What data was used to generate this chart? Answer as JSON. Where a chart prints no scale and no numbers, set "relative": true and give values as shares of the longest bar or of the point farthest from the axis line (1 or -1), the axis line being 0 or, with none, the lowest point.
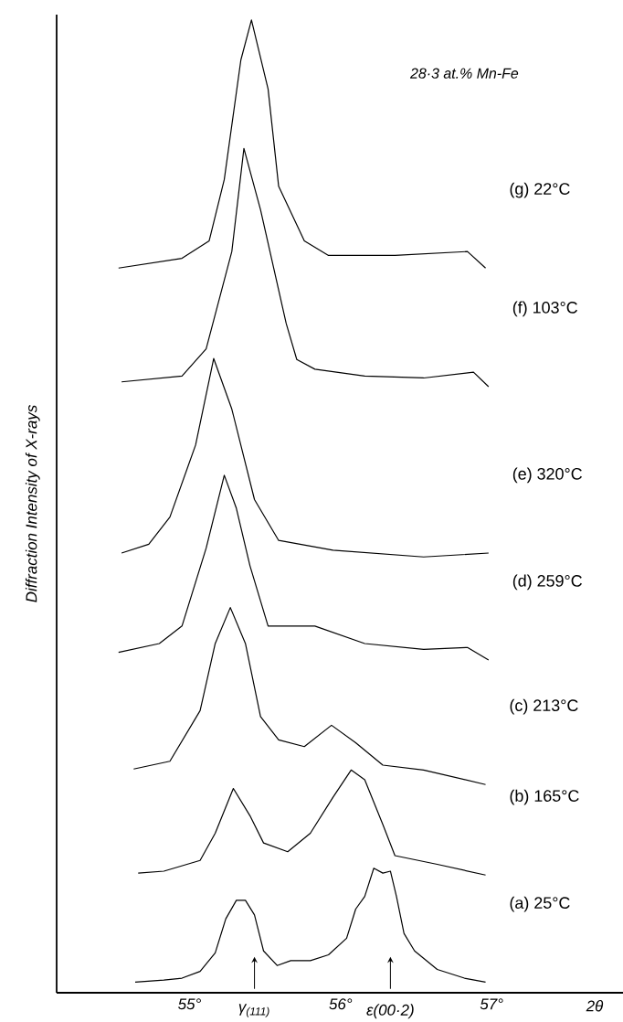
{
  "chart_data": {
    "type": "line",
    "title": "28·3 at.% Mn-Fe",
    "xlabel": "2θ",
    "ylabel": "Diffraction Intensity of X-rays",
    "relative": true,
    "xlim": [
      54.12,
      57.87
    ],
    "xticks": [
      {
        "value": 55,
        "label": "55°"
      },
      {
        "value": 56,
        "label": "56°"
      },
      {
        "value": 57,
        "label": "57°"
      }
    ],
    "series": [
      {
        "name": "(a) 25°C",
        "color": "#000000",
        "x": [
          54.64,
          54.83,
          54.95,
          55.07,
          55.17,
          55.24,
          55.31,
          55.37,
          55.43,
          55.49,
          55.58,
          55.67,
          55.8,
          55.92,
          56.04,
          56.1,
          56.16,
          56.22,
          56.28,
          56.33,
          56.37,
          56.42,
          56.49,
          56.64,
          56.82,
          56.96
        ],
        "values": [
          0.011,
          0.013,
          0.015,
          0.022,
          0.041,
          0.076,
          0.095,
          0.095,
          0.08,
          0.043,
          0.028,
          0.033,
          0.033,
          0.039,
          0.056,
          0.086,
          0.099,
          0.128,
          0.123,
          0.125,
          0.099,
          0.061,
          0.043,
          0.024,
          0.015,
          0.011
        ]
      },
      {
        "name": "(b) 165°C",
        "color": "#000000",
        "x": [
          54.66,
          54.83,
          55.07,
          55.17,
          55.29,
          55.4,
          55.49,
          55.65,
          55.8,
          55.95,
          56.07,
          56.16,
          56.28,
          56.36,
          56.64,
          56.96
        ],
        "values": [
          0.123,
          0.125,
          0.136,
          0.164,
          0.21,
          0.182,
          0.154,
          0.145,
          0.164,
          0.201,
          0.229,
          0.219,
          0.173,
          0.141,
          0.132,
          0.121
        ]
      },
      {
        "name": "(c) 213°C",
        "color": "#000000",
        "x": [
          54.63,
          54.87,
          55.07,
          55.17,
          55.27,
          55.37,
          55.47,
          55.59,
          55.76,
          55.94,
          56.1,
          56.28,
          56.55,
          56.96
        ],
        "values": [
          0.23,
          0.238,
          0.29,
          0.359,
          0.396,
          0.359,
          0.284,
          0.26,
          0.253,
          0.275,
          0.257,
          0.234,
          0.229,
          0.214
        ]
      },
      {
        "name": "(d) 259°C",
        "color": "#000000",
        "x": [
          54.53,
          54.8,
          54.95,
          55.11,
          55.23,
          55.31,
          55.4,
          55.52,
          55.83,
          56.16,
          56.55,
          56.84,
          56.98
        ],
        "values": [
          0.35,
          0.359,
          0.377,
          0.457,
          0.532,
          0.498,
          0.439,
          0.377,
          0.377,
          0.359,
          0.353,
          0.355,
          0.342
        ]
      },
      {
        "name": "(e) 320°C",
        "color": "#000000",
        "x": [
          54.55,
          54.73,
          54.87,
          55.04,
          55.16,
          55.28,
          55.43,
          55.59,
          55.95,
          56.55,
          56.98
        ],
        "values": [
          0.452,
          0.461,
          0.489,
          0.563,
          0.652,
          0.6,
          0.507,
          0.465,
          0.455,
          0.448,
          0.452
        ]
      },
      {
        "name": "(f) 103°C",
        "color": "#000000",
        "x": [
          54.55,
          54.95,
          55.11,
          55.28,
          55.36,
          55.47,
          55.64,
          55.71,
          55.83,
          56.16,
          56.55,
          56.88,
          56.98
        ],
        "values": [
          0.628,
          0.634,
          0.662,
          0.762,
          0.868,
          0.805,
          0.688,
          0.651,
          0.641,
          0.634,
          0.632,
          0.638,
          0.623
        ]
      },
      {
        "name": "(g) 22°C",
        "color": "#000000",
        "x": [
          54.53,
          54.95,
          55.13,
          55.23,
          55.34,
          55.41,
          55.52,
          55.59,
          55.76,
          55.92,
          56.36,
          56.84,
          56.96
        ],
        "values": [
          0.745,
          0.755,
          0.773,
          0.836,
          0.959,
          1.0,
          0.929,
          0.829,
          0.773,
          0.758,
          0.758,
          0.762,
          0.745
        ]
      }
    ],
    "annotations": [
      {
        "text": "γ$_{(111)}$",
        "x": 55.43,
        "y": 0.037
      },
      {
        "text": "ε(00·2)",
        "x": 56.33,
        "y": 0.037
      }
    ]
  }
}
